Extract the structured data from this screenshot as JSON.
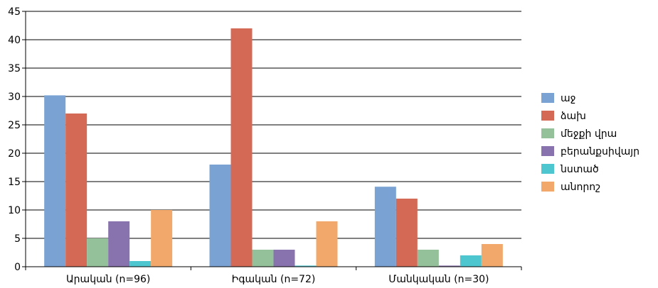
{
  "chart_data": {
    "type": "bar",
    "categories": [
      "Արական (n=96)",
      "Իգական (n=72)",
      "Մանկական (n=30)"
    ],
    "series": [
      {
        "name": "աջ",
        "color": "#7aa3d4",
        "values": [
          30.2,
          18,
          14.1
        ]
      },
      {
        "name": "ձախ",
        "color": "#d46a56",
        "values": [
          27,
          42,
          12
        ]
      },
      {
        "name": "մեջքի վրա",
        "color": "#95c19a",
        "values": [
          5,
          3,
          3
        ]
      },
      {
        "name": "բերանքսիվայր",
        "color": "#8873ae",
        "values": [
          8,
          3,
          0.2
        ]
      },
      {
        "name": "նստած",
        "color": "#4ec6cf",
        "values": [
          1,
          0.2,
          2
        ]
      },
      {
        "name": "անորոշ",
        "color": "#f2a86a",
        "values": [
          10,
          8,
          4
        ]
      }
    ],
    "ylim": [
      0,
      45
    ],
    "yticks": [
      0,
      5,
      10,
      15,
      20,
      25,
      30,
      35,
      40,
      45
    ],
    "grid": true,
    "legend": "right"
  }
}
